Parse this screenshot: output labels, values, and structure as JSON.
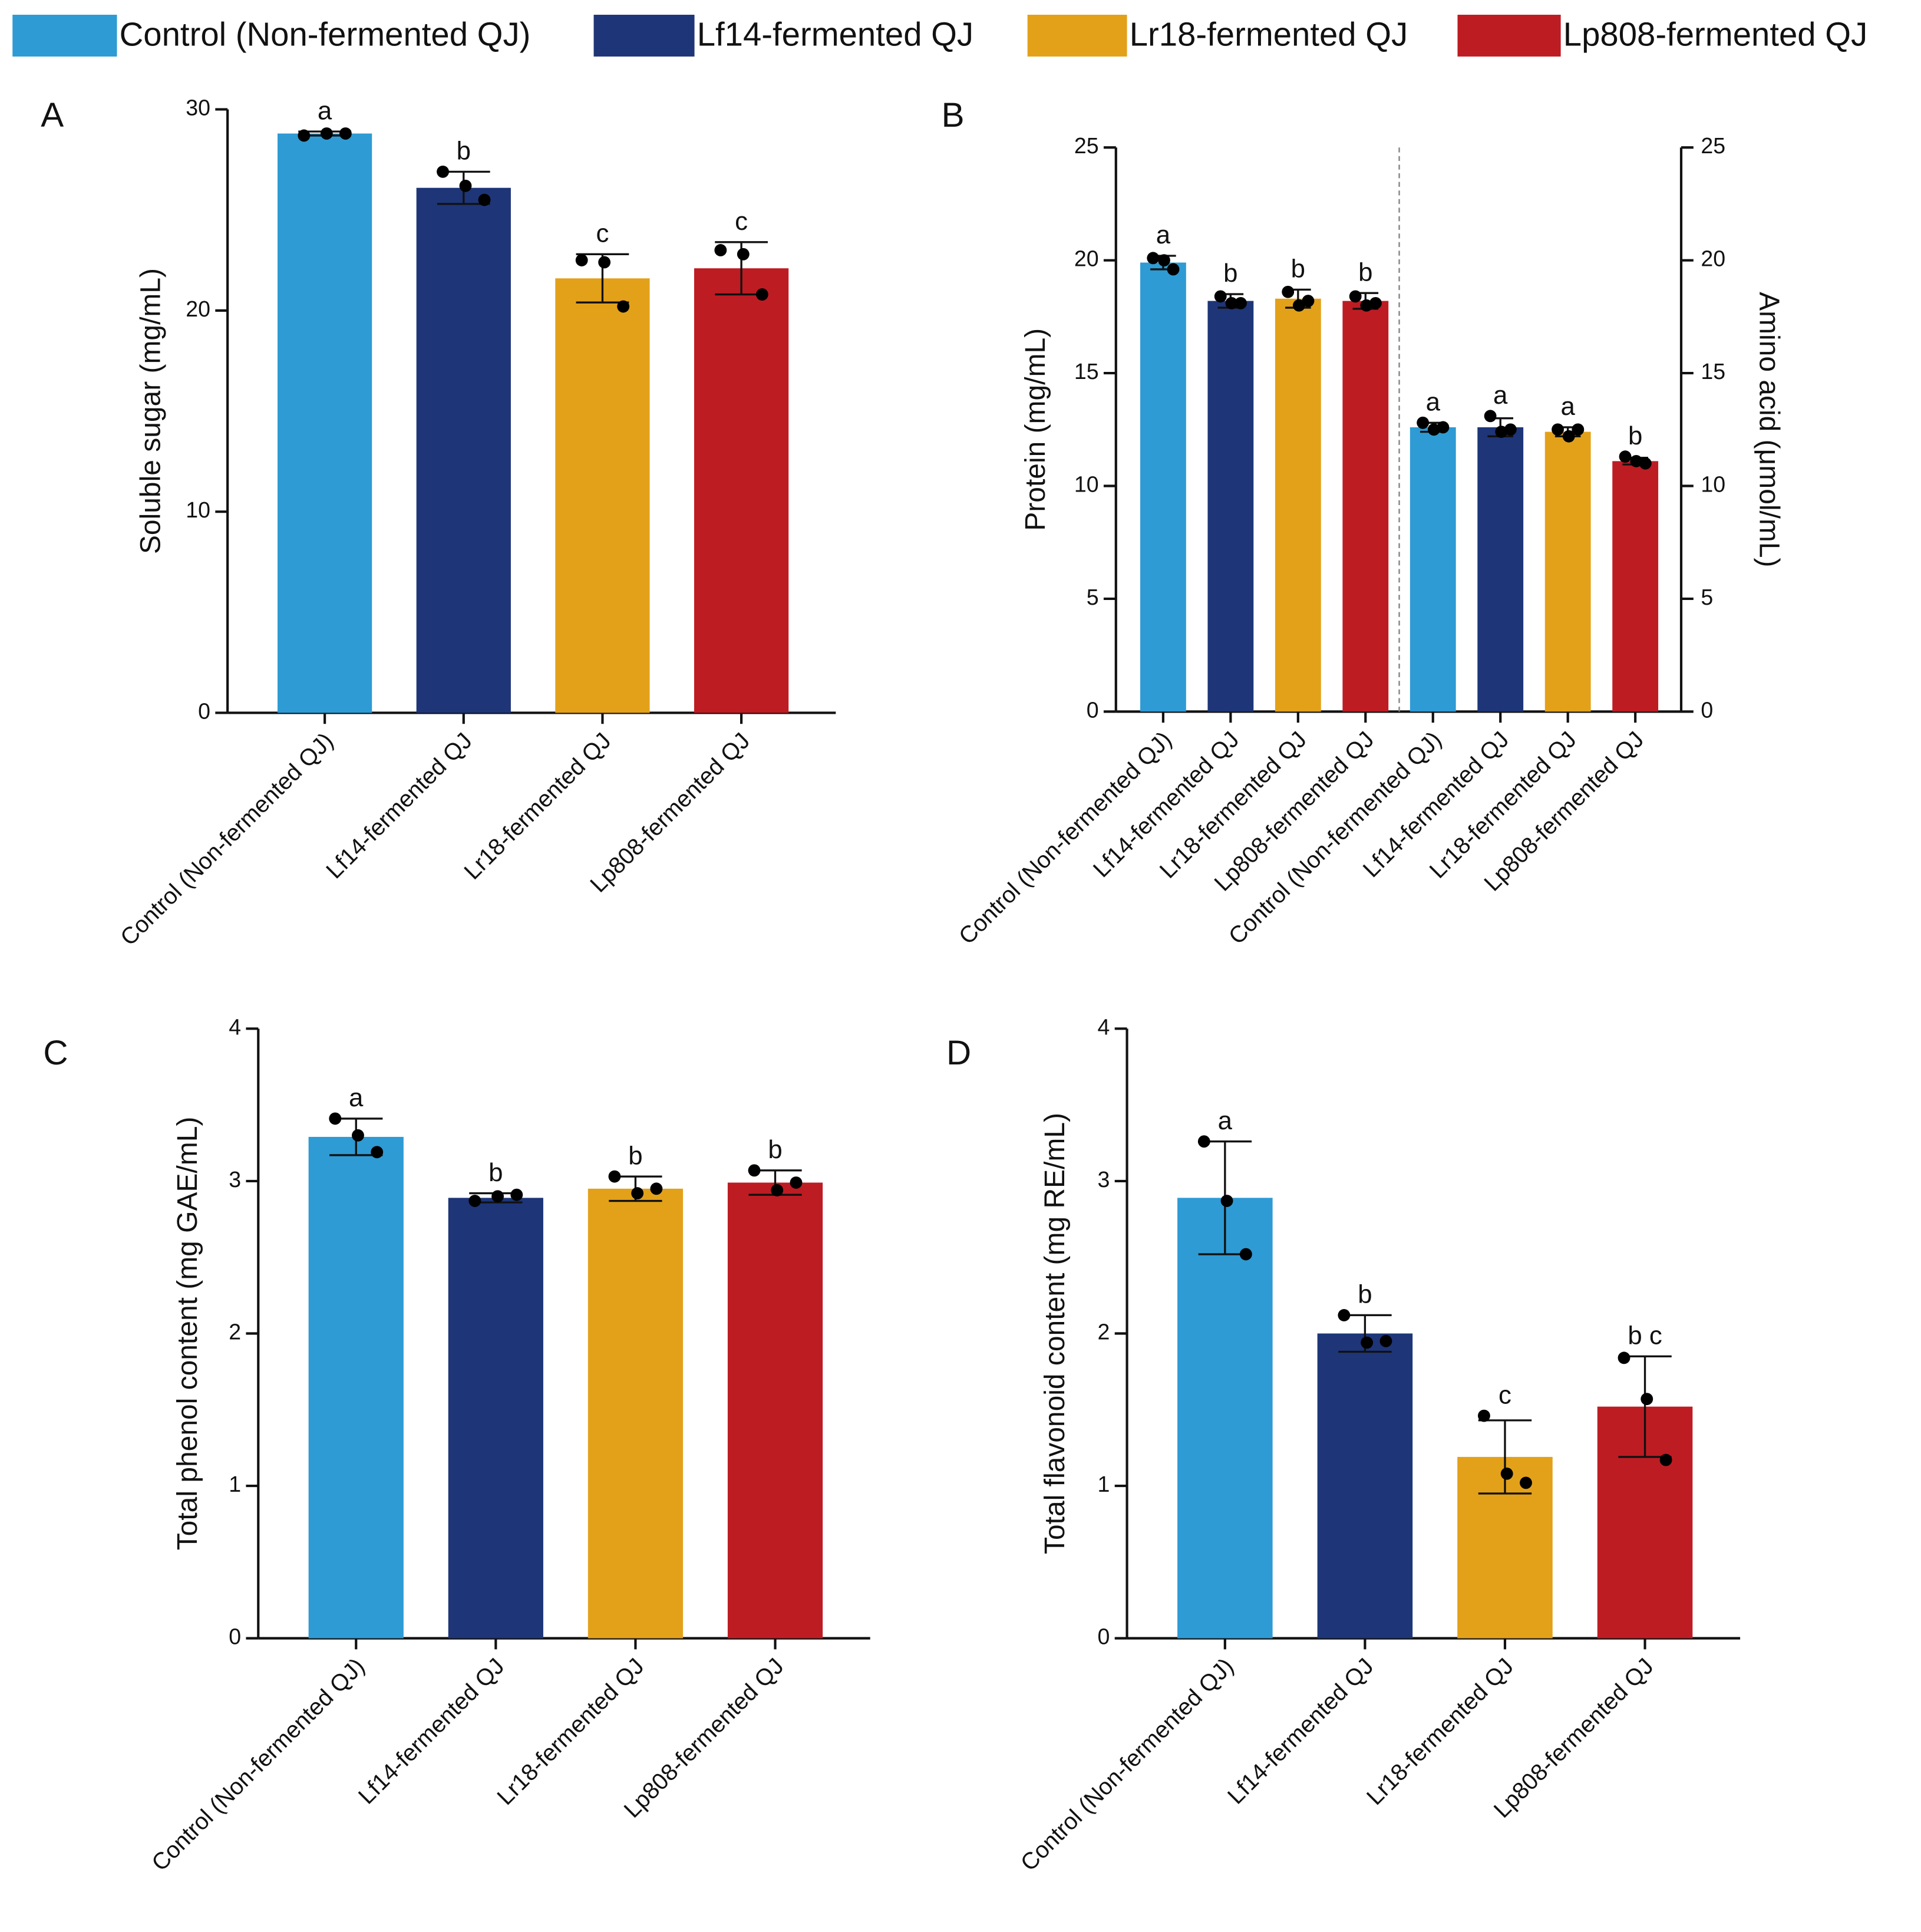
{
  "legend": {
    "labels": [
      "Control (Non-fermented QJ)",
      "Lf14-fermented QJ",
      "Lr18-fermented QJ",
      "Lp808-fermented QJ"
    ],
    "colors": [
      "#2e9bd4",
      "#1e3578",
      "#e3a11a",
      "#be1c23"
    ]
  },
  "chart_data": [
    {
      "type": "bar",
      "panel_label": "A",
      "ylabel": "Soluble sugar (mg/mL)",
      "categories": [
        "Control (Non-fermented QJ)",
        "Lf14-fermented QJ",
        "Lr18-fermented QJ",
        "Lp808-fermented QJ"
      ],
      "values": [
        28.8,
        26.1,
        21.6,
        22.1
      ],
      "errors": [
        0.1,
        0.8,
        1.2,
        1.3
      ],
      "points": [
        [
          28.7,
          28.8,
          28.8
        ],
        [
          26.9,
          26.2,
          25.5
        ],
        [
          22.5,
          22.4,
          20.2
        ],
        [
          23.0,
          22.8,
          20.8
        ]
      ],
      "letters": [
        "a",
        "b",
        "c",
        "c"
      ],
      "ylim": [
        0,
        30
      ],
      "yticks": [
        0,
        10,
        20,
        30
      ]
    },
    {
      "type": "bar",
      "panel_label": "B",
      "ylabel": "Protein (mg/mL)",
      "y2label": "Amino acid (μmol/mL)",
      "ylim": [
        0,
        25
      ],
      "yticks": [
        0,
        5,
        10,
        15,
        20,
        25
      ],
      "y2lim": [
        0,
        25
      ],
      "y2ticks": [
        0,
        5,
        10,
        15,
        20,
        25
      ],
      "series": [
        {
          "categories": [
            "Control (Non-fermented QJ)",
            "Lf14-fermented QJ",
            "Lr18-fermented QJ",
            "Lp808-fermented QJ"
          ],
          "values": [
            19.9,
            18.2,
            18.3,
            18.2
          ],
          "errors": [
            0.3,
            0.3,
            0.4,
            0.35
          ],
          "points": [
            [
              20.1,
              20.0,
              19.6
            ],
            [
              18.4,
              18.1,
              18.1
            ],
            [
              18.6,
              18.0,
              18.2
            ],
            [
              18.4,
              18.0,
              18.1
            ]
          ],
          "letters": [
            "a",
            "b",
            "b",
            "b"
          ]
        },
        {
          "axis": "y2",
          "categories": [
            "Control (Non-fermented QJ)",
            "Lf14-fermented QJ",
            "Lr18-fermented QJ",
            "Lp808-fermented QJ"
          ],
          "values": [
            12.6,
            12.6,
            12.4,
            11.1
          ],
          "errors": [
            0.2,
            0.4,
            0.2,
            0.15
          ],
          "points": [
            [
              12.8,
              12.5,
              12.6
            ],
            [
              13.1,
              12.4,
              12.5
            ],
            [
              12.5,
              12.2,
              12.5
            ],
            [
              11.3,
              11.1,
              11.0
            ]
          ],
          "letters": [
            "a",
            "a",
            "a",
            "b"
          ]
        }
      ]
    },
    {
      "type": "bar",
      "panel_label": "C",
      "ylabel": "Total phenol content (mg GAE/mL)",
      "categories": [
        "Control (Non-fermented QJ)",
        "Lf14-fermented QJ",
        "Lr18-fermented QJ",
        "Lp808-fermented QJ"
      ],
      "values": [
        3.29,
        2.89,
        2.95,
        2.99
      ],
      "errors": [
        0.12,
        0.03,
        0.08,
        0.08
      ],
      "points": [
        [
          3.41,
          3.3,
          3.19
        ],
        [
          2.87,
          2.9,
          2.91
        ],
        [
          3.03,
          2.92,
          2.95
        ],
        [
          3.07,
          2.94,
          2.99
        ]
      ],
      "letters": [
        "a",
        "b",
        "b",
        "b"
      ],
      "ylim": [
        0,
        4
      ],
      "yticks": [
        0,
        1,
        2,
        3,
        4
      ]
    },
    {
      "type": "bar",
      "panel_label": "D",
      "ylabel": "Total flavonoid content (mg RE/mL)",
      "categories": [
        "Control (Non-fermented QJ)",
        "Lf14-fermented QJ",
        "Lr18-fermented QJ",
        "Lp808-fermented QJ"
      ],
      "values": [
        2.89,
        2.0,
        1.19,
        1.52
      ],
      "errors": [
        0.37,
        0.12,
        0.24,
        0.33
      ],
      "points": [
        [
          3.26,
          2.87,
          2.52
        ],
        [
          2.12,
          1.94,
          1.95
        ],
        [
          1.46,
          1.08,
          1.02
        ],
        [
          1.84,
          1.57,
          1.17
        ]
      ],
      "letters": [
        "a",
        "b",
        "c",
        "b c"
      ],
      "ylim": [
        0,
        4
      ],
      "yticks": [
        0,
        1,
        2,
        3,
        4
      ]
    }
  ]
}
